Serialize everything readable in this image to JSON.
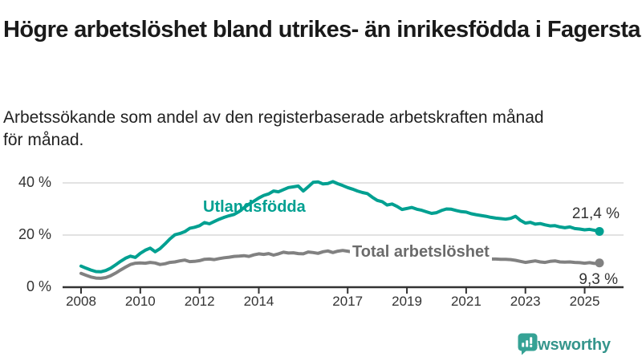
{
  "header": {
    "title": "Högre arbetslöshet bland utrikes- än inrikesfödda i Fagersta",
    "subtitle": "Arbetssökande som andel av den registerbaserade arbetskraften månad för månad.",
    "subtitle_line1": "Arbetssökande som andel av den registerbaserade arbetskraften månad",
    "subtitle_line2": "för månad."
  },
  "chart_data": {
    "type": "line",
    "unit": "%",
    "x_start_month": "2008-01",
    "x_end_month": "2025-07",
    "grid": "horizontal-only",
    "ylim": [
      0,
      44
    ],
    "y_ticks": [
      {
        "value": 0,
        "label": "0 %"
      },
      {
        "value": 20,
        "label": "20 %"
      },
      {
        "value": 40,
        "label": "40 %"
      }
    ],
    "x_ticks": [
      {
        "year": 2008,
        "label": "2008"
      },
      {
        "year": 2010,
        "label": "2010"
      },
      {
        "year": 2012,
        "label": "2012"
      },
      {
        "year": 2014,
        "label": "2014"
      },
      {
        "year": 2017,
        "label": "2017"
      },
      {
        "year": 2019,
        "label": "2019"
      },
      {
        "year": 2021,
        "label": "2021"
      },
      {
        "year": 2023,
        "label": "2023"
      },
      {
        "year": 2025,
        "label": "2025"
      }
    ],
    "sampling": "every 2 months, Jan 2008 - Jul 2025",
    "series": [
      {
        "name": "Utlandsfödda",
        "color": "#00a091",
        "end_label": "21,4 %",
        "end_value": 21.4,
        "values": [
          8.1,
          7.3,
          6.6,
          6.0,
          5.9,
          6.4,
          7.3,
          8.6,
          9.9,
          11.1,
          11.9,
          11.4,
          13.0,
          14.2,
          15.0,
          13.6,
          14.8,
          16.6,
          18.5,
          20.1,
          20.6,
          21.3,
          22.6,
          23.0,
          23.6,
          24.8,
          24.3,
          25.2,
          26.1,
          26.8,
          27.4,
          27.9,
          29.0,
          30.5,
          31.8,
          33.0,
          34.2,
          35.2,
          35.8,
          36.9,
          36.6,
          37.4,
          38.2,
          38.5,
          38.8,
          36.9,
          38.5,
          40.2,
          40.4,
          39.6,
          39.8,
          40.5,
          39.7,
          39.0,
          38.2,
          37.6,
          36.9,
          36.3,
          35.9,
          34.5,
          33.3,
          32.8,
          31.5,
          31.9,
          31.0,
          29.8,
          30.2,
          30.6,
          29.9,
          29.5,
          28.9,
          28.3,
          28.6,
          29.4,
          30.0,
          29.9,
          29.4,
          29.0,
          28.8,
          28.2,
          27.8,
          27.5,
          27.2,
          26.8,
          26.5,
          26.3,
          26.1,
          26.4,
          27.2,
          25.6,
          24.6,
          24.9,
          24.2,
          24.4,
          23.9,
          23.5,
          23.6,
          23.1,
          22.8,
          23.1,
          22.5,
          22.3,
          22.0,
          22.2,
          21.8,
          21.4
        ]
      },
      {
        "name": "Total arbetslöshet",
        "color": "#818181",
        "end_label": "9,3 %",
        "end_value": 9.3,
        "values": [
          5.3,
          4.6,
          3.9,
          3.5,
          3.4,
          3.7,
          4.4,
          5.4,
          6.6,
          7.7,
          8.7,
          9.2,
          9.3,
          9.2,
          9.5,
          9.3,
          8.7,
          9.0,
          9.5,
          9.7,
          10.1,
          10.4,
          9.8,
          9.9,
          10.2,
          10.7,
          10.8,
          10.6,
          11.0,
          11.3,
          11.5,
          11.8,
          11.9,
          12.1,
          11.8,
          12.4,
          12.8,
          12.6,
          12.9,
          12.3,
          12.8,
          13.4,
          13.1,
          13.2,
          12.9,
          12.8,
          13.5,
          13.3,
          13.0,
          13.6,
          13.9,
          13.3,
          13.8,
          14.1,
          13.8,
          13.5,
          13.3,
          13.1,
          12.9,
          12.7,
          12.5,
          12.4,
          12.2,
          12.3,
          12.1,
          11.9,
          11.8,
          11.9,
          11.7,
          11.6,
          11.4,
          11.3,
          11.5,
          12.0,
          12.3,
          12.1,
          11.9,
          11.7,
          11.5,
          11.3,
          11.2,
          11.0,
          10.9,
          10.8,
          10.8,
          10.7,
          10.7,
          10.6,
          10.3,
          9.9,
          9.5,
          9.8,
          10.1,
          9.7,
          9.5,
          9.9,
          10.1,
          9.7,
          9.6,
          9.7,
          9.5,
          9.4,
          9.2,
          9.4,
          9.1,
          9.3
        ]
      }
    ],
    "colors": {
      "grid": "#d9d9d9",
      "axis": "#333333",
      "teal": "#00a091",
      "gray": "#818181"
    }
  },
  "footer": {
    "brand": "Newsworthy",
    "logo_color": "#35a295"
  }
}
